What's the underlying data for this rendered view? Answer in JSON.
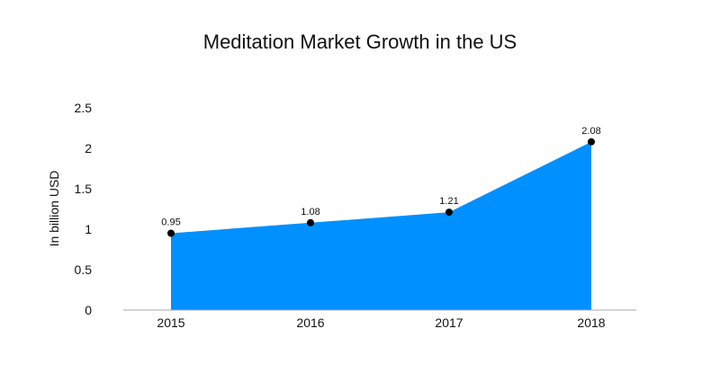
{
  "chart_data": {
    "type": "area",
    "title": "Meditation Market Growth in the US",
    "xlabel": "",
    "ylabel": "In billion USD",
    "categories": [
      "2015",
      "2016",
      "2017",
      "2018"
    ],
    "series": [
      {
        "values": [
          0.95,
          1.08,
          1.21,
          2.08
        ]
      }
    ],
    "data_labels": [
      "0.95",
      "1.08",
      "1.21",
      "2.08"
    ],
    "yticks": [
      "0",
      "0.5",
      "1",
      "1.5",
      "2",
      "2.5"
    ],
    "ylim": [
      0,
      2.5
    ],
    "grid": false,
    "legend": "none",
    "colors": {
      "area": "#0090ff",
      "marker": "#000000",
      "axis": "#aaaaaa"
    }
  }
}
